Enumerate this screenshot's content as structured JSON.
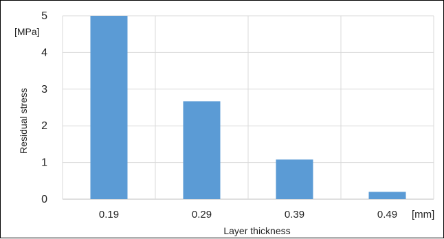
{
  "chart_data": {
    "type": "bar",
    "categories": [
      "0.19",
      "0.29",
      "0.39",
      "0.49"
    ],
    "values": [
      5.0,
      2.67,
      1.08,
      0.2
    ],
    "xlabel": "Layer thickness",
    "ylabel": "Residual stress",
    "x_unit": "[mm]",
    "y_unit": "[MPa]",
    "ylim": [
      0,
      5
    ],
    "yticks": [
      "0",
      "1",
      "2",
      "3",
      "4",
      "5"
    ],
    "grid": true,
    "bar_color": "#5b9bd5"
  }
}
